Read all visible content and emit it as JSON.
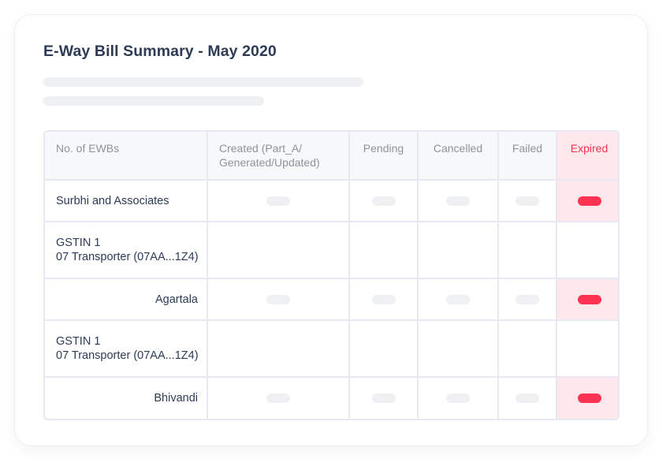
{
  "card": {
    "title": "E-Way Bill Summary - May 2020"
  },
  "table": {
    "headers": [
      {
        "label": "No. of EWBs"
      },
      {
        "label_line1": "Created (Part_A/",
        "label_line2": "Generated/Updated)"
      },
      {
        "label": "Pending"
      },
      {
        "label": "Cancelled"
      },
      {
        "label": "Failed"
      },
      {
        "label": "Expired"
      }
    ],
    "rows": [
      {
        "type": "entity",
        "name": "Surbhi and Associates"
      },
      {
        "type": "gstin",
        "line1": "GSTIN 1",
        "line2": "07 Transporter (07AA...1Z4)"
      },
      {
        "type": "location",
        "name": "Agartala"
      },
      {
        "type": "gstin",
        "line1": "GSTIN 1",
        "line2": "07 Transporter (07AA...1Z4)"
      },
      {
        "type": "location",
        "name": "Bhivandi"
      }
    ]
  },
  "colors": {
    "expired_accent": "#fe3351",
    "expired_bg": "#ffe8ec",
    "skeleton": "#eff0f2",
    "title": "#2d3b55"
  }
}
